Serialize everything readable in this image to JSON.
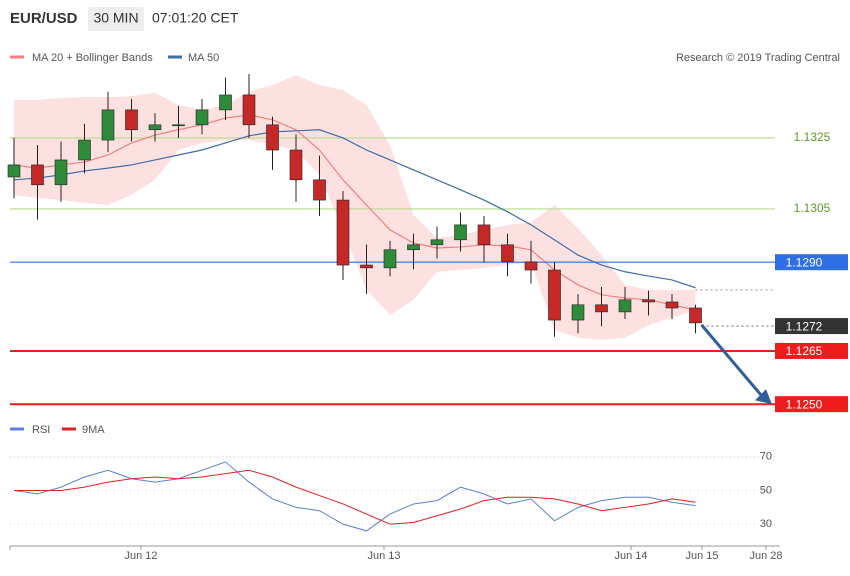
{
  "header": {
    "symbol": "EUR/USD",
    "interval": "30 MIN",
    "time": "07:01:20 CET"
  },
  "copyright": "Research © 2019 Trading Central",
  "chart_data": [
    {
      "type": "candlestick",
      "up_color": "#2e8b3a",
      "down_color": "#c62828",
      "open": [
        1.1314,
        1.13174,
        1.13118,
        1.13188,
        1.13244,
        1.13329,
        1.13273,
        1.13287,
        1.13287,
        1.13329,
        1.13371,
        1.13287,
        1.13216,
        1.13132,
        1.13075,
        1.12892,
        1.12884,
        1.12935,
        1.12949,
        1.12963,
        1.13005,
        1.12949,
        1.12901,
        1.12878,
        1.12737,
        1.1278,
        1.1276,
        1.12794,
        1.12788,
        1.12771
      ],
      "high": [
        1.1325,
        1.1323,
        1.1324,
        1.1329,
        1.1338,
        1.1336,
        1.1332,
        1.1334,
        1.1336,
        1.1342,
        1.1343,
        1.1331,
        1.1326,
        1.132,
        1.131,
        1.1295,
        1.1296,
        1.1298,
        1.13,
        1.1304,
        1.1303,
        1.1298,
        1.1296,
        1.129,
        1.1281,
        1.1283,
        1.1283,
        1.1282,
        1.1281,
        1.1278
      ],
      "low": [
        1.1308,
        1.1302,
        1.1307,
        1.1315,
        1.1321,
        1.1324,
        1.1324,
        1.1325,
        1.1326,
        1.133,
        1.1325,
        1.1316,
        1.1307,
        1.1303,
        1.1285,
        1.1281,
        1.1286,
        1.1288,
        1.1291,
        1.1293,
        1.129,
        1.1286,
        1.1284,
        1.1269,
        1.127,
        1.1272,
        1.1274,
        1.1275,
        1.1274,
        1.127
      ],
      "close": [
        1.13174,
        1.13118,
        1.13188,
        1.13244,
        1.13329,
        1.13273,
        1.13287,
        1.13287,
        1.13329,
        1.13371,
        1.13287,
        1.13216,
        1.13132,
        1.13075,
        1.12892,
        1.12884,
        1.12935,
        1.12949,
        1.12963,
        1.13005,
        1.12949,
        1.12901,
        1.12878,
        1.12737,
        1.1278,
        1.1276,
        1.12794,
        1.12788,
        1.12771,
        1.12729
      ],
      "series": [
        {
          "name": "MA 20 + Bollinger Bands",
          "color": "#f08080",
          "band_color": "#fde1e1",
          "values": [
            1.13174,
            1.13165,
            1.13174,
            1.13182,
            1.13202,
            1.13236,
            1.13258,
            1.13273,
            1.13287,
            1.13306,
            1.13315,
            1.13301,
            1.13273,
            1.13216,
            1.13132,
            1.13061,
            1.12991,
            1.12954,
            1.1294,
            1.12943,
            1.12949,
            1.12946,
            1.12935,
            1.12878,
            1.12836,
            1.12808,
            1.12799,
            1.12794,
            1.1278,
            1.12765
          ],
          "upper": [
            1.13357,
            1.13357,
            1.13363,
            1.13365,
            1.13365,
            1.13368,
            1.13377,
            1.13343,
            1.13329,
            1.13343,
            1.1338,
            1.13399,
            1.13427,
            1.13399,
            1.13385,
            1.13343,
            1.1323,
            1.13033,
            1.12968,
            1.12977,
            1.12991,
            1.13005,
            1.13013,
            1.13061,
            1.12996,
            1.1292,
            1.12836,
            1.12822,
            1.12822,
            1.12822
          ],
          "lower": [
            1.13089,
            1.13081,
            1.13075,
            1.13067,
            1.13061,
            1.13089,
            1.13132,
            1.13216,
            1.13236,
            1.13244,
            1.13244,
            1.1323,
            1.13216,
            1.13146,
            1.12991,
            1.12822,
            1.12751,
            1.12794,
            1.12873,
            1.12878,
            1.12884,
            1.12892,
            1.129,
            1.12709,
            1.12687,
            1.12681,
            1.12687,
            1.12723,
            1.12743,
            1.12765
          ]
        },
        {
          "name": "MA 50",
          "color": "#3d6ea8",
          "values": [
            1.13132,
            1.13137,
            1.13146,
            1.13157,
            1.13165,
            1.13174,
            1.13188,
            1.13202,
            1.13216,
            1.13236,
            1.13256,
            1.13267,
            1.1327,
            1.13273,
            1.1325,
            1.13216,
            1.13188,
            1.1316,
            1.13132,
            1.13104,
            1.13075,
            1.13042,
            1.13005,
            1.12963,
            1.1292,
            1.12892,
            1.12873,
            1.12861,
            1.1285,
            1.12828
          ]
        }
      ],
      "ylim": [
        1.12478,
        1.13447
      ],
      "levels": [
        {
          "value": 1.1325,
          "color": "#b5dc8a",
          "text_color": "#5e9a22",
          "kind": "line"
        },
        {
          "value": 1.1305,
          "color": "#b5dc8a",
          "text_color": "#5e9a22",
          "kind": "line"
        },
        {
          "value": 1.129,
          "label": "1.1290",
          "color": "#2f6fe4",
          "kind": "box"
        },
        {
          "value": 1.1272,
          "color": "#333333",
          "kind": "dotted"
        },
        {
          "value": 1.1265,
          "color": "#ee1c1c",
          "kind": "box"
        },
        {
          "value": 1.125,
          "label": "1.1250",
          "color": "#ee1c1c",
          "kind": "box"
        }
      ]
    },
    {
      "type": "line",
      "series": [
        {
          "name": "RSI",
          "color": "#5b7fd6",
          "values": [
            50,
            48,
            52,
            58,
            62,
            57,
            55,
            57,
            62,
            67,
            55,
            45,
            40,
            38,
            30,
            26,
            36,
            42,
            44,
            52,
            48,
            42,
            45,
            32,
            40,
            44,
            46,
            46,
            43,
            41
          ]
        },
        {
          "name": "9MA",
          "color": "#e02020",
          "values": [
            50,
            50,
            50,
            52,
            55,
            57,
            58,
            57,
            58,
            60,
            62,
            58,
            52,
            47,
            42,
            36,
            30,
            31,
            35,
            39,
            44,
            46,
            46,
            45,
            42,
            38,
            40,
            42,
            45,
            43
          ]
        }
      ],
      "ylim": [
        20,
        80
      ],
      "yticks": [
        30,
        50,
        70
      ],
      "x_labels": [
        "Jun 12",
        "Jun 13",
        "Jun 14",
        "Jun 15",
        "Jun 28"
      ]
    }
  ]
}
